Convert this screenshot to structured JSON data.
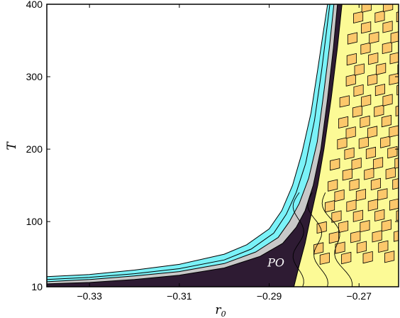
{
  "chart_data": {
    "type": "heatmap",
    "title": "",
    "xlabel": "r",
    "xlabel_subscript": "0",
    "ylabel": "T",
    "xlim": [
      -0.3395,
      -0.2612
    ],
    "ylim": [
      10,
      400
    ],
    "x_ticks": [
      -0.33,
      -0.31,
      -0.29,
      -0.27
    ],
    "x_tick_labels": [
      "−0.33",
      "−0.31",
      "−0.29",
      "−0.27"
    ],
    "y_ticks": [
      10,
      100,
      200,
      300,
      400
    ],
    "y_tick_labels": [
      "10",
      "100",
      "200",
      "300",
      "400"
    ],
    "grid": false,
    "legend": "none",
    "annotations": [
      {
        "text": "PO",
        "x": -0.2885,
        "y": 38
      }
    ],
    "regions": [
      {
        "id": "dark",
        "color": "#2e1b33",
        "description": "PO region"
      },
      {
        "id": "gray",
        "color": "#c8c8c8"
      },
      {
        "id": "cyan",
        "color": "#7af2f8"
      },
      {
        "id": "light-yellow",
        "color": "#fcfa96"
      },
      {
        "id": "orange",
        "color": "#fcc86b"
      },
      {
        "id": "white",
        "color": "#ffffff"
      }
    ],
    "boundaries": {
      "dark_left_edge": [
        [
          -0.3395,
          14
        ],
        [
          -0.33,
          16
        ],
        [
          -0.32,
          20
        ],
        [
          -0.31,
          26
        ],
        [
          -0.3,
          36
        ],
        [
          -0.292,
          52
        ],
        [
          -0.287,
          70
        ],
        [
          -0.284,
          92
        ],
        [
          -0.282,
          115
        ],
        [
          -0.2802,
          150
        ],
        [
          -0.2785,
          200
        ],
        [
          -0.277,
          270
        ],
        [
          -0.2757,
          340
        ],
        [
          -0.2748,
          400
        ]
      ],
      "gray_left_edge": [
        [
          -0.3395,
          17
        ],
        [
          -0.33,
          20
        ],
        [
          -0.32,
          25
        ],
        [
          -0.31,
          31
        ],
        [
          -0.3,
          42
        ],
        [
          -0.293,
          58
        ],
        [
          -0.288,
          78
        ],
        [
          -0.2855,
          100
        ],
        [
          -0.2833,
          125
        ],
        [
          -0.2812,
          160
        ],
        [
          -0.2793,
          210
        ],
        [
          -0.2778,
          280
        ],
        [
          -0.2766,
          340
        ],
        [
          -0.2756,
          400
        ]
      ],
      "cyan_left_edge": [
        [
          -0.3395,
          20
        ],
        [
          -0.33,
          23
        ],
        [
          -0.32,
          28
        ],
        [
          -0.31,
          35
        ],
        [
          -0.3,
          47
        ],
        [
          -0.294,
          62
        ],
        [
          -0.289,
          84
        ],
        [
          -0.2862,
          110
        ],
        [
          -0.284,
          140
        ],
        [
          -0.2819,
          180
        ],
        [
          -0.2799,
          240
        ],
        [
          -0.2783,
          310
        ],
        [
          -0.2771,
          370
        ],
        [
          -0.2765,
          400
        ]
      ],
      "outer_edge": [
        [
          -0.3395,
          24
        ],
        [
          -0.33,
          27
        ],
        [
          -0.32,
          33
        ],
        [
          -0.31,
          41
        ],
        [
          -0.3,
          55
        ],
        [
          -0.295,
          68
        ],
        [
          -0.29,
          90
        ],
        [
          -0.2872,
          115
        ],
        [
          -0.2848,
          150
        ],
        [
          -0.2827,
          195
        ],
        [
          -0.2807,
          250
        ],
        [
          -0.2792,
          310
        ],
        [
          -0.278,
          360
        ],
        [
          -0.277,
          400
        ]
      ],
      "yellow_left_edge": [
        [
          -0.2845,
          10
        ],
        [
          -0.2835,
          35
        ],
        [
          -0.282,
          70
        ],
        [
          -0.281,
          100
        ],
        [
          -0.2792,
          150
        ],
        [
          -0.2778,
          200
        ],
        [
          -0.2762,
          270
        ],
        [
          -0.2748,
          340
        ],
        [
          -0.2738,
          400
        ]
      ],
      "orange_left_edge": [
        [
          -0.2612,
          12
        ],
        [
          -0.266,
          40
        ],
        [
          -0.27,
          80
        ],
        [
          -0.2718,
          120
        ],
        [
          -0.2733,
          170
        ],
        [
          -0.2745,
          230
        ],
        [
          -0.2755,
          300
        ],
        [
          -0.2762,
          360
        ],
        [
          -0.2765,
          400
        ]
      ]
    }
  }
}
